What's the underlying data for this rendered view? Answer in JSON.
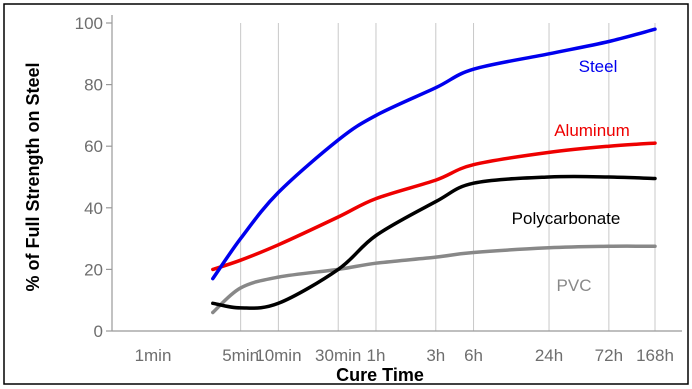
{
  "chart_data": {
    "type": "line",
    "xlabel": "Cure Time",
    "ylabel": "% of Full Strength on Steel",
    "ylim": [
      0,
      100
    ],
    "yticks": [
      0,
      20,
      40,
      60,
      80,
      100
    ],
    "xticks": [
      "1min",
      "5min",
      "10min",
      "30min",
      "1h",
      "3h",
      "6h",
      "24h",
      "72h",
      "168h"
    ],
    "grid": "vertical",
    "series": [
      {
        "name": "Steel",
        "color": "#0000ee",
        "points": [
          [
            "3min",
            17
          ],
          [
            "5min",
            30
          ],
          [
            "10min",
            45
          ],
          [
            "30min",
            62
          ],
          [
            "1h",
            70
          ],
          [
            "3h",
            79
          ],
          [
            "6h",
            85
          ],
          [
            "24h",
            90
          ],
          [
            "72h",
            94
          ],
          [
            "168h",
            98
          ]
        ]
      },
      {
        "name": "Aluminum",
        "color": "#ee0000",
        "points": [
          [
            "3min",
            20
          ],
          [
            "5min",
            23
          ],
          [
            "10min",
            28
          ],
          [
            "30min",
            37
          ],
          [
            "1h",
            43
          ],
          [
            "3h",
            49
          ],
          [
            "6h",
            54
          ],
          [
            "24h",
            58
          ],
          [
            "72h",
            60
          ],
          [
            "168h",
            61
          ]
        ]
      },
      {
        "name": "Polycarbonate",
        "color": "#000000",
        "points": [
          [
            "3min",
            9
          ],
          [
            "5min",
            7.5
          ],
          [
            "10min",
            9
          ],
          [
            "30min",
            20
          ],
          [
            "1h",
            31
          ],
          [
            "3h",
            42
          ],
          [
            "6h",
            48
          ],
          [
            "24h",
            50
          ],
          [
            "72h",
            50
          ],
          [
            "168h",
            49.5
          ]
        ]
      },
      {
        "name": "PVC",
        "color": "#888888",
        "points": [
          [
            "3min",
            6
          ],
          [
            "5min",
            14
          ],
          [
            "10min",
            17.5
          ],
          [
            "30min",
            20
          ],
          [
            "1h",
            22
          ],
          [
            "3h",
            24
          ],
          [
            "6h",
            25.5
          ],
          [
            "24h",
            27
          ],
          [
            "72h",
            27.5
          ],
          [
            "168h",
            27.5
          ]
        ]
      }
    ]
  }
}
